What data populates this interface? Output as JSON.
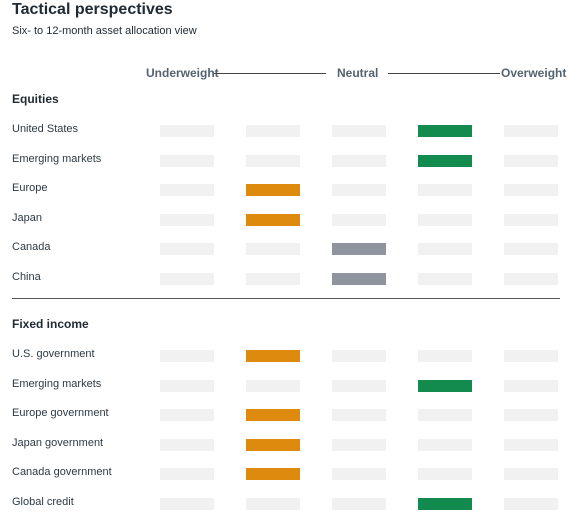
{
  "title": "Tactical perspectives",
  "subtitle": "Six- to 12-month asset allocation view",
  "scale": {
    "left": "Underweight",
    "middle": "Neutral",
    "right": "Overweight"
  },
  "colors": {
    "empty": "#f1f1f1",
    "underweight": "#de8a0e",
    "neutral": "#8f949f",
    "overweight": "#138a4e"
  },
  "chart_data": {
    "type": "table",
    "title": "Tactical perspectives",
    "subtitle": "Six- to 12-month asset allocation view",
    "scale_positions": 5,
    "sections": [
      {
        "name": "Equities",
        "rows": [
          {
            "label": "United States",
            "position": 4,
            "view": "overweight"
          },
          {
            "label": "Emerging markets",
            "position": 4,
            "view": "overweight"
          },
          {
            "label": "Europe",
            "position": 2,
            "view": "underweight"
          },
          {
            "label": "Japan",
            "position": 2,
            "view": "underweight"
          },
          {
            "label": "Canada",
            "position": 3,
            "view": "neutral"
          },
          {
            "label": "China",
            "position": 3,
            "view": "neutral"
          }
        ]
      },
      {
        "name": "Fixed income",
        "rows": [
          {
            "label": "U.S. government",
            "position": 2,
            "view": "underweight"
          },
          {
            "label": "Emerging markets",
            "position": 4,
            "view": "overweight"
          },
          {
            "label": "Europe government",
            "position": 2,
            "view": "underweight"
          },
          {
            "label": "Japan government",
            "position": 2,
            "view": "underweight"
          },
          {
            "label": "Canada government",
            "position": 2,
            "view": "underweight"
          },
          {
            "label": "Global credit",
            "position": 4,
            "view": "overweight"
          }
        ]
      }
    ]
  }
}
